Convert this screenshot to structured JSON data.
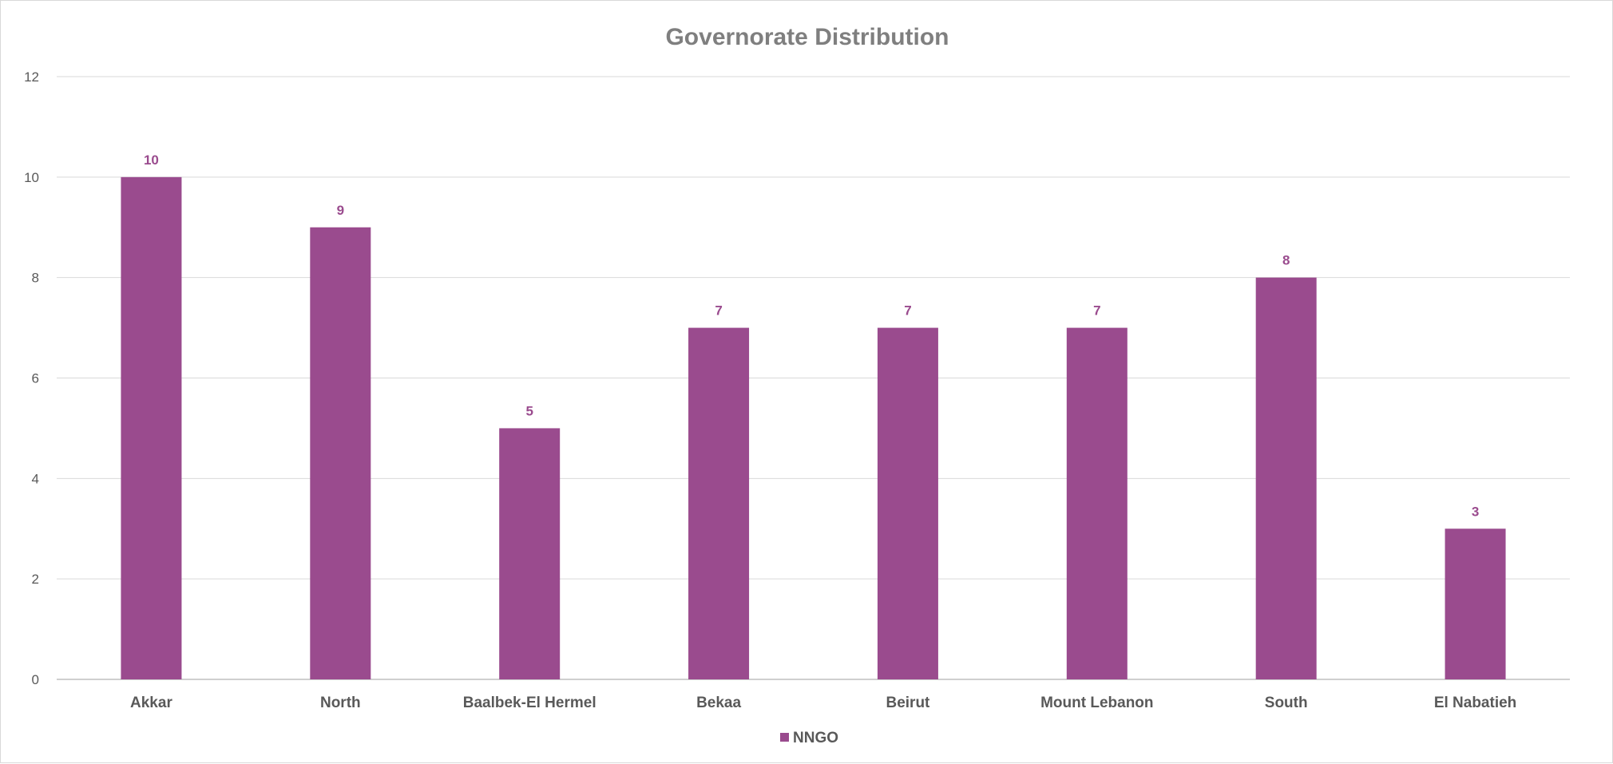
{
  "chart_data": {
    "type": "bar",
    "title": "Governorate Distribution",
    "categories": [
      "Akkar",
      "North",
      "Baalbek-El Hermel",
      "Bekaa",
      "Beirut",
      "Mount Lebanon",
      "South",
      "El Nabatieh"
    ],
    "series": [
      {
        "name": "NNGO",
        "values": [
          10,
          9,
          5,
          7,
          7,
          7,
          8,
          3
        ],
        "color": "#9a4b8e"
      }
    ],
    "ylim": [
      0,
      12
    ],
    "yticks": [
      0,
      2,
      4,
      6,
      8,
      10,
      12
    ],
    "grid": true,
    "legend": "bottom",
    "data_labels": true
  }
}
